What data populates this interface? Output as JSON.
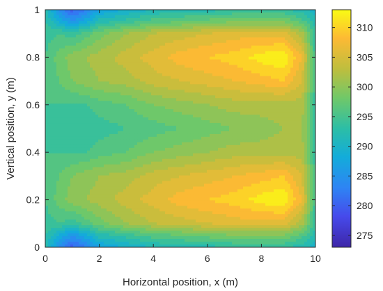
{
  "chart_data": {
    "type": "heatmap",
    "subtype": "filled-contour",
    "title": "",
    "xlabel": "Horizontal position, x (m)",
    "ylabel": "Vertical position, y (m)",
    "xlim": [
      0,
      10
    ],
    "ylim": [
      0,
      1
    ],
    "xticks": [
      0,
      2,
      4,
      6,
      8,
      10
    ],
    "yticks": [
      0,
      0.2,
      0.4,
      0.6,
      0.8,
      1
    ],
    "colorbar": {
      "colormap": "parula",
      "clim": [
        273,
        313
      ],
      "ticks": [
        275,
        280,
        285,
        290,
        295,
        300,
        305,
        310
      ]
    },
    "z_unit": "temperature",
    "x": [
      0,
      0.5,
      1,
      1.5,
      2,
      3,
      4,
      5,
      6,
      7,
      8,
      8.8,
      9.5,
      10
    ],
    "y": [
      0,
      0.05,
      0.1,
      0.2,
      0.3,
      0.4,
      0.5,
      0.6,
      0.7,
      0.8,
      0.9,
      0.95,
      1
    ],
    "z": [
      [
        292,
        285,
        280,
        283,
        287,
        289,
        291,
        292,
        292,
        293,
        293,
        293,
        292,
        290
      ],
      [
        293,
        289,
        285,
        288,
        292,
        294,
        296,
        297,
        298,
        299,
        299,
        299,
        296,
        292
      ],
      [
        294,
        295,
        294,
        296,
        298,
        301,
        303,
        304,
        305,
        306,
        306,
        306,
        302,
        293
      ],
      [
        295,
        298,
        300,
        301,
        302,
        304,
        306,
        308,
        309,
        310,
        312,
        313,
        307,
        294
      ],
      [
        295,
        297,
        299,
        300,
        301,
        302,
        304,
        305,
        306,
        307,
        308,
        309,
        305,
        294
      ],
      [
        295,
        295,
        295,
        295,
        296,
        297,
        299,
        300,
        301,
        302,
        302,
        302,
        302,
        294
      ],
      [
        295,
        294,
        293,
        293,
        294,
        295,
        296,
        297,
        298,
        299,
        300,
        301,
        301,
        294
      ],
      [
        295,
        295,
        295,
        295,
        296,
        297,
        299,
        300,
        301,
        302,
        302,
        302,
        302,
        294
      ],
      [
        295,
        297,
        299,
        300,
        301,
        302,
        304,
        305,
        306,
        307,
        308,
        309,
        305,
        294
      ],
      [
        295,
        298,
        300,
        301,
        302,
        304,
        306,
        308,
        309,
        310,
        312,
        313,
        307,
        294
      ],
      [
        294,
        295,
        294,
        296,
        298,
        301,
        303,
        304,
        305,
        306,
        306,
        306,
        302,
        293
      ],
      [
        293,
        289,
        285,
        288,
        292,
        294,
        296,
        297,
        298,
        299,
        299,
        299,
        296,
        292
      ],
      [
        292,
        285,
        280,
        283,
        287,
        289,
        291,
        292,
        292,
        293,
        293,
        293,
        292,
        290
      ]
    ]
  }
}
